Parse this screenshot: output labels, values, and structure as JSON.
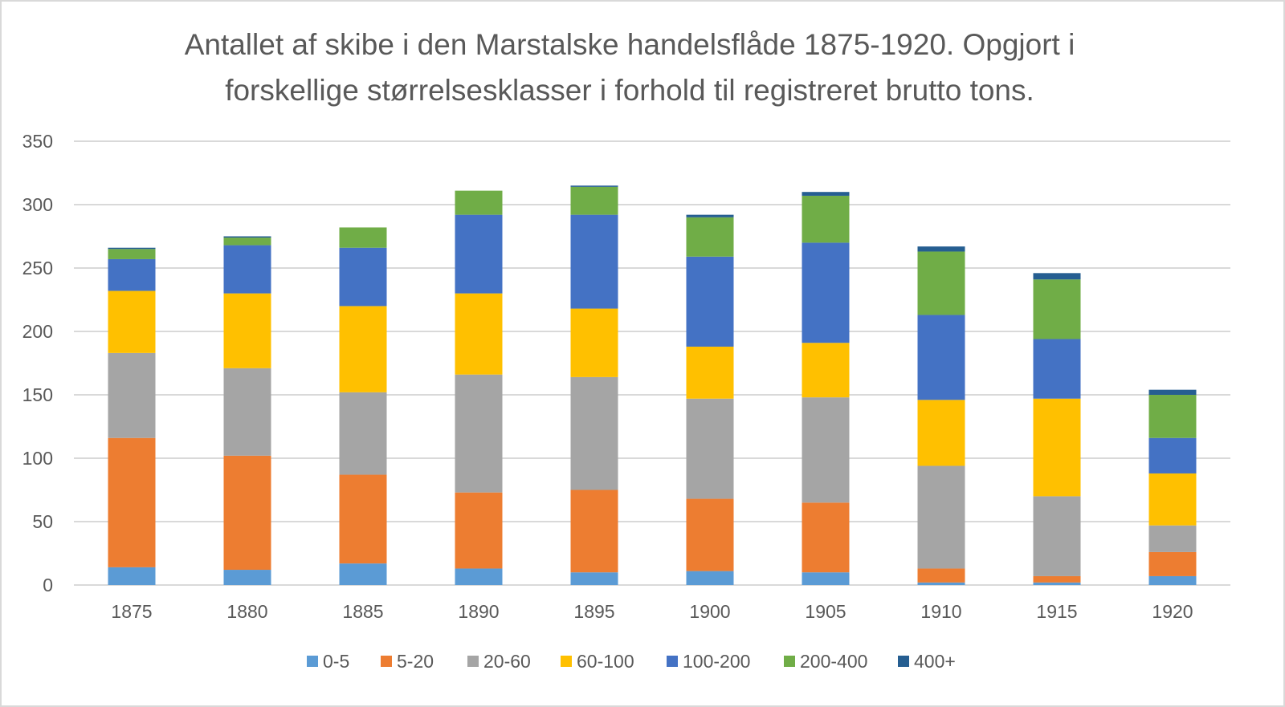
{
  "chart_data": {
    "type": "bar",
    "stacked": true,
    "title_lines": [
      "Antallet af skibe i den Marstalske handelsflåde  1875-1920. Opgjort i",
      "forskellige størrelsesklasser i forhold til registreret brutto tons."
    ],
    "xlabel": "",
    "ylabel": "",
    "ylim": [
      0,
      350
    ],
    "yticks": [
      0,
      50,
      100,
      150,
      200,
      250,
      300,
      350
    ],
    "grid": true,
    "legend_position": "bottom",
    "categories": [
      "1875",
      "1880",
      "1885",
      "1890",
      "1895",
      "1900",
      "1905",
      "1910",
      "1915",
      "1920"
    ],
    "series": [
      {
        "name": "0-5",
        "color": "#5b9bd5",
        "values": [
          14,
          12,
          17,
          13,
          10,
          11,
          10,
          2,
          2,
          7
        ]
      },
      {
        "name": "5-20",
        "color": "#ed7d31",
        "values": [
          102,
          90,
          70,
          60,
          65,
          57,
          55,
          11,
          5,
          19
        ]
      },
      {
        "name": "20-60",
        "color": "#a5a5a5",
        "values": [
          67,
          69,
          65,
          93,
          89,
          79,
          83,
          81,
          63,
          21
        ]
      },
      {
        "name": "60-100",
        "color": "#ffc000",
        "values": [
          49,
          59,
          68,
          64,
          54,
          41,
          43,
          52,
          77,
          41
        ]
      },
      {
        "name": "100-200",
        "color": "#4472c4",
        "values": [
          25,
          38,
          46,
          62,
          74,
          71,
          79,
          67,
          47,
          28
        ]
      },
      {
        "name": "200-400",
        "color": "#70ad47",
        "values": [
          8,
          6,
          16,
          19,
          22,
          31,
          37,
          50,
          47,
          34
        ]
      },
      {
        "name": "400+",
        "color": "#255e91",
        "values": [
          1,
          1,
          0,
          0,
          1,
          2,
          3,
          4,
          5,
          4
        ]
      }
    ]
  }
}
